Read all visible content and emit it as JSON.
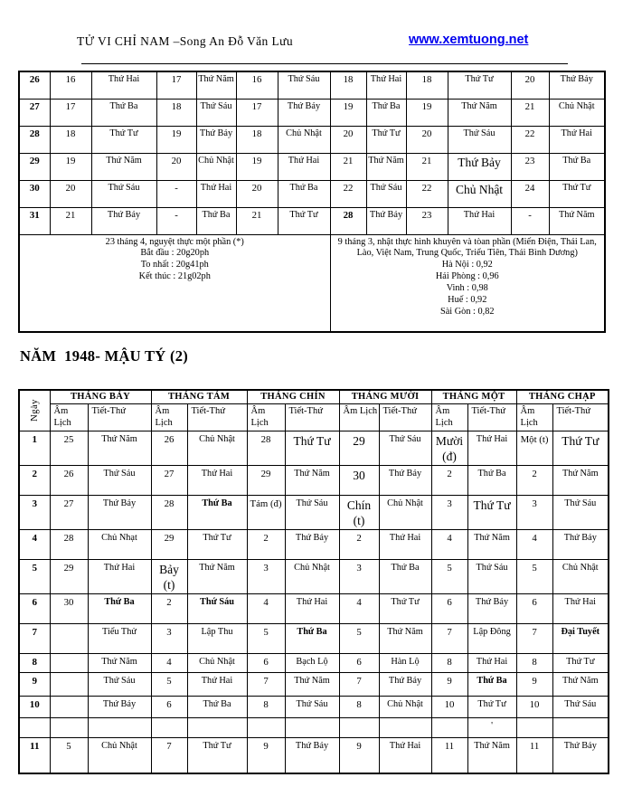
{
  "header": {
    "title": "TỬ VI CHỈ NAM –Song An Đỗ Văn Lưu",
    "url": "www.xemtuong.net",
    "link_color": "#0000ee"
  },
  "table_top": {
    "rows": [
      {
        "day": "26",
        "cols": [
          "16",
          "Thứ Hai",
          "17",
          "Thứ Năm",
          "16",
          "Thứ Sáu",
          "18",
          "Thứ Hai",
          "18",
          "Thứ Tư",
          "20",
          "Thứ Bảy"
        ],
        "styles": {}
      },
      {
        "day": "27",
        "cols": [
          "17",
          "Thứ Ba",
          "18",
          "Thứ Sáu",
          "17",
          "Thứ Bảy",
          "19",
          "Thứ Ba",
          "19",
          "Thứ Năm",
          "21",
          "Chủ Nhật"
        ],
        "styles": {}
      },
      {
        "day": "28",
        "cols": [
          "18",
          "Thứ Tư",
          "19",
          "Thứ Bảy",
          "18",
          "Chủ Nhật",
          "20",
          "Thứ Tư",
          "20",
          "Thứ Sáu",
          "22",
          "Thứ Hai"
        ],
        "styles": {}
      },
      {
        "day": "29",
        "cols": [
          "19",
          "Thứ Năm",
          "20",
          "Chủ Nhật",
          "19",
          "Thứ Hai",
          "21",
          "Thứ Năm",
          "21",
          "Thứ Bảy",
          "23",
          "Thứ Ba"
        ],
        "styles": {
          "9": "lg"
        }
      },
      {
        "day": "30",
        "cols": [
          "20",
          "Thứ Sáu",
          "-",
          "Thứ Hai",
          "20",
          "Thứ Ba",
          "22",
          "Thứ Sáu",
          "22",
          "Chủ Nhật",
          "24",
          "Thứ Tư"
        ],
        "styles": {
          "9": "lg"
        }
      },
      {
        "day": "31",
        "cols": [
          "21",
          "Thứ Bảy",
          "-",
          "Thứ Ba",
          "21",
          "Thứ Tư",
          "28",
          "Thứ Bảy",
          "23",
          "Thứ Hai",
          "-",
          "Thứ Năm"
        ],
        "styles": {
          "6": "b"
        }
      }
    ],
    "note_left_lines": [
      "23 tháng 4, nguyệt thực một phần (*)",
      "Bắt đầu : 20g20ph",
      "To nhất : 20g41ph",
      "Kết thúc : 21g02ph"
    ],
    "note_right_lines": [
      "9 tháng 3, nhật thực hình khuyên và tòan phần (Miến Điện, Thái Lan, Lào, Việt Nam, Trung Quốc, Triểu Tiên, Thái Bình Dương)",
      "Hà Nội : 0,92",
      "Hải Phòng : 0,96",
      "Vinh : 0,98",
      "Huế : 0,92",
      "Sài Gòn : 0,82"
    ]
  },
  "year_heading": "NĂM  1948- MẬU TÝ (2)",
  "table_bottom": {
    "day_header": "Ngày",
    "months": [
      "THÁNG BẢY",
      "THÁNG TÁM",
      "THÁNG  CHÍN",
      "THÁNG MƯỜI",
      "THÁNG MỘT",
      "THÁNG CHẠP"
    ],
    "sub_headers": [
      "Âm Lịch",
      "Tiết-Thứ"
    ],
    "rows": [
      {
        "day": "1",
        "cols": [
          "25",
          "Thứ Năm",
          "26",
          "Chủ Nhật",
          "28",
          "Thứ Tư",
          "29",
          "Thứ Sáu",
          "Mười (đ)",
          "Thứ Hai",
          "Một (t)",
          "Thứ Tư"
        ],
        "styles": {
          "5": "lg",
          "6": "lg",
          "8": "lg",
          "11": "lg"
        }
      },
      {
        "day": "2",
        "cols": [
          "26",
          "Thứ Sáu",
          "27",
          "Thứ Hai",
          "29",
          "Thứ Năm",
          "30",
          "Thứ Bảy",
          "2",
          "Thứ Ba",
          "2",
          "Thứ Năm"
        ],
        "styles": {
          "6": "lg"
        }
      },
      {
        "day": "3",
        "cols": [
          "27",
          "Thứ Bảy",
          "28",
          "Thứ Ba",
          "Tám (đ)",
          "Thứ Sáu",
          "Chín (t)",
          "Chủ Nhật",
          "3",
          "Thứ Tư",
          "3",
          "Thứ Sáu"
        ],
        "styles": {
          "3": "b",
          "6": "lg",
          "9": "lg"
        }
      },
      {
        "day": "4",
        "cols": [
          "28",
          "Chủ Nhạt",
          "29",
          "Thứ Tư",
          "2",
          "Thứ Bảy",
          "2",
          "Thứ Hai",
          "4",
          "Thứ Năm",
          "4",
          "Thứ Bảy"
        ],
        "styles": {}
      },
      {
        "day": "5",
        "cols": [
          "29",
          "Thứ Hai",
          "Bảy (t)",
          "Thứ Năm",
          "3",
          "Chủ Nhật",
          "3",
          "Thứ Ba",
          "5",
          "Thứ Sáu",
          "5",
          "Chủ Nhật"
        ],
        "styles": {
          "2": "lg"
        }
      },
      {
        "day": "6",
        "cols": [
          "30",
          "Thứ Ba",
          "2",
          "Thứ Sáu",
          "4",
          "Thứ Hai",
          "4",
          "Thứ Tư",
          "6",
          "Thứ Bảy",
          "6",
          "Thứ Hai"
        ],
        "styles": {
          "1": "b",
          "3": "b"
        }
      },
      {
        "day": "7",
        "cols": [
          "",
          "Tiểu Thử",
          "3",
          "Lập Thu",
          "5",
          "Thứ Ba",
          "5",
          "Thứ Năm",
          "7",
          "Lập Đông",
          "7",
          "Đại Tuyết"
        ],
        "styles": {
          "5": "b",
          "11": "b"
        }
      },
      {
        "day": "8",
        "cols": [
          "",
          "Thứ Năm",
          "4",
          "Chủ Nhật",
          "6",
          "Bạch Lộ",
          "6",
          "Hàn Lộ",
          "8",
          "Thứ Hai",
          "8",
          "Thứ Tư"
        ],
        "styles": {}
      },
      {
        "day": "9",
        "cols": [
          "",
          "Thứ Sáu",
          "5",
          "Thứ Hai",
          "7",
          "Thứ Năm",
          "7",
          "Thứ Bảy",
          "9",
          "Thứ Ba",
          "9",
          "Thứ Năm"
        ],
        "styles": {
          "9": "b"
        }
      },
      {
        "day": "10",
        "cols": [
          "",
          "Thứ Bảy",
          "6",
          "Thứ Ba",
          "8",
          "Thứ Sáu",
          "8",
          "Chủ Nhật",
          "10",
          "Thứ Tư",
          "10",
          "Thứ Sáu"
        ],
        "styles": {}
      },
      {
        "day": "",
        "cols": [
          "",
          "",
          "",
          "",
          "",
          "",
          "",
          "",
          "",
          "'",
          "",
          ""
        ],
        "styles": {},
        "spacer": true
      },
      {
        "day": "11",
        "cols": [
          "5",
          "Chủ Nhật",
          "7",
          "Thứ Tư",
          "9",
          "Thứ Bảy",
          "9",
          "Thứ Hai",
          "11",
          "Thứ Năm",
          "11",
          "Thứ Bảy"
        ],
        "styles": {}
      }
    ]
  }
}
